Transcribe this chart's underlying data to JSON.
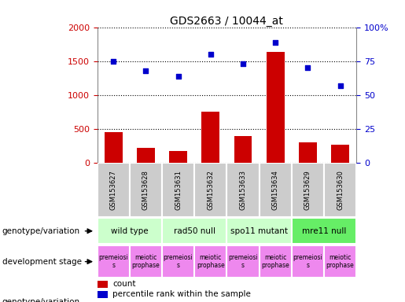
{
  "title": "GDS2663 / 10044_at",
  "samples": [
    "GSM153627",
    "GSM153628",
    "GSM153631",
    "GSM153632",
    "GSM153633",
    "GSM153634",
    "GSM153629",
    "GSM153630"
  ],
  "counts": [
    450,
    225,
    175,
    760,
    400,
    1640,
    300,
    270
  ],
  "percentiles": [
    75,
    68,
    64,
    80,
    73,
    89,
    70,
    57
  ],
  "count_scale": 2000,
  "percentile_scale": 100,
  "bar_color": "#cc0000",
  "dot_color": "#0000cc",
  "genotype_groups": [
    {
      "label": "wild type",
      "start": 0,
      "end": 2,
      "color": "#ccffcc"
    },
    {
      "label": "rad50 null",
      "start": 2,
      "end": 4,
      "color": "#ccffcc"
    },
    {
      "label": "spo11 mutant",
      "start": 4,
      "end": 6,
      "color": "#ccffcc"
    },
    {
      "label": "mre11 null",
      "start": 6,
      "end": 8,
      "color": "#66ee66"
    }
  ],
  "dev_stages": [
    {
      "label": "premeiosi\ns",
      "start": 0,
      "end": 1,
      "color": "#ee88ee"
    },
    {
      "label": "meiotic\nprophase",
      "start": 1,
      "end": 2,
      "color": "#ee88ee"
    },
    {
      "label": "premeiosi\ns",
      "start": 2,
      "end": 3,
      "color": "#ee88ee"
    },
    {
      "label": "meiotic\nprophase",
      "start": 3,
      "end": 4,
      "color": "#ee88ee"
    },
    {
      "label": "premeiosi\ns",
      "start": 4,
      "end": 5,
      "color": "#ee88ee"
    },
    {
      "label": "meiotic\nprophase",
      "start": 5,
      "end": 6,
      "color": "#ee88ee"
    },
    {
      "label": "premeiosi\ns",
      "start": 6,
      "end": 7,
      "color": "#ee88ee"
    },
    {
      "label": "meiotic\nprophase",
      "start": 7,
      "end": 8,
      "color": "#ee88ee"
    }
  ],
  "sample_box_color": "#cccccc",
  "tick_color_left": "#cc0000",
  "tick_color_right": "#0000cc",
  "yticks_left": [
    0,
    500,
    1000,
    1500,
    2000
  ],
  "yticks_right": [
    0,
    25,
    50,
    75,
    100
  ],
  "ytick_labels_right": [
    "0",
    "25",
    "50",
    "75",
    "100%"
  ],
  "background_color": "#ffffff"
}
